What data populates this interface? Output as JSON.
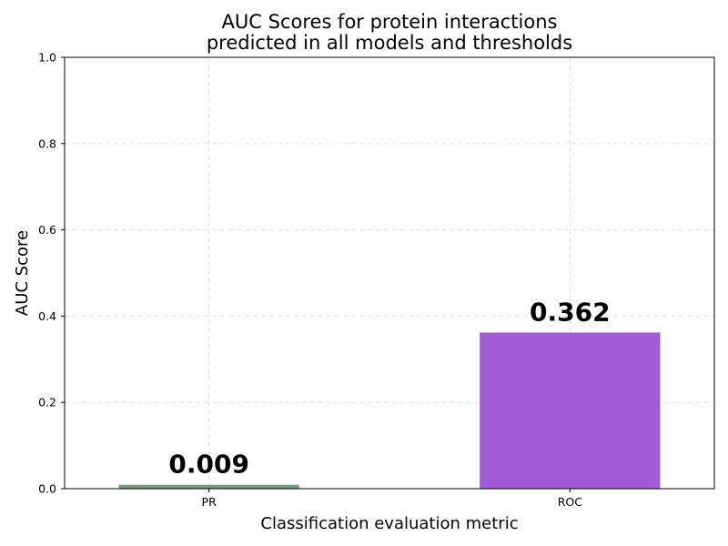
{
  "chart_data": {
    "type": "bar",
    "title_lines": [
      "AUC Scores for protein interactions",
      "predicted in all models and thresholds"
    ],
    "xlabel": "Classification evaluation metric",
    "ylabel": "AUC Score",
    "categories": [
      "PR",
      "ROC"
    ],
    "values": [
      0.009,
      0.362
    ],
    "value_labels": [
      "0.009",
      "0.362"
    ],
    "colors": [
      "#6e9e78",
      "#a45bd7"
    ],
    "ylim": [
      0,
      1.0
    ],
    "yticks": [
      0.0,
      0.2,
      0.4,
      0.6,
      0.8,
      1.0
    ],
    "ytick_labels": [
      "0.0",
      "0.2",
      "0.4",
      "0.6",
      "0.8",
      "1.0"
    ],
    "grid": true,
    "legend": "none"
  }
}
